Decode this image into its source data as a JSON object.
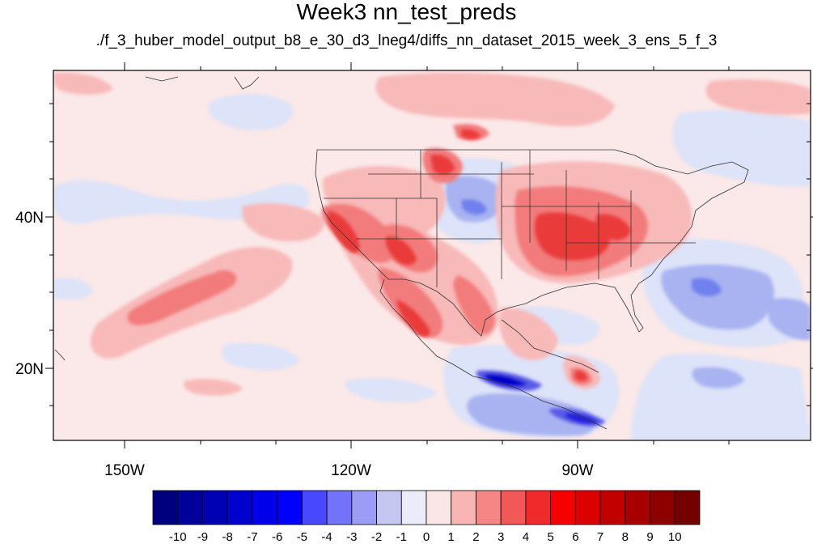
{
  "title": "Week3 nn_test_preds",
  "subtitle": "./f_3_huber_model_output_b8_e_30_d3_lneg4/diffs_nn_dataset_2015_week_3_ens_5_f_3",
  "map": {
    "lat_ticks": [
      "20N",
      "40N"
    ],
    "lon_ticks": [
      "150W",
      "120W",
      "90W"
    ]
  },
  "colorbar": {
    "labels": [
      "-10",
      "-9",
      "-8",
      "-7",
      "-6",
      "-5",
      "-4",
      "-3",
      "-2",
      "-1",
      "0",
      "1",
      "2",
      "3",
      "4",
      "5",
      "6",
      "7",
      "8",
      "9",
      "10"
    ],
    "colors": [
      "#00007f",
      "#00009a",
      "#0000b5",
      "#0000cf",
      "#0000ea",
      "#0000ff",
      "#4848fe",
      "#7272fb",
      "#9c9cf7",
      "#c6c6f3",
      "#ebebfa",
      "#fbe6e6",
      "#f9b4b4",
      "#f68686",
      "#f35858",
      "#f02a2a",
      "#f60000",
      "#dc0000",
      "#c20000",
      "#a80000",
      "#8e0000",
      "#740000"
    ]
  },
  "field_colors": {
    "background": "#fbe8e8",
    "light_red": "#f8b9b9",
    "mid_red": "#f27c7c",
    "strong_red": "#ea3a3a",
    "light_blue": "#dde3f8",
    "mid_blue": "#a9b3f1",
    "strong_blue": "#3c3ce6",
    "deep_blue": "#0000cc"
  }
}
